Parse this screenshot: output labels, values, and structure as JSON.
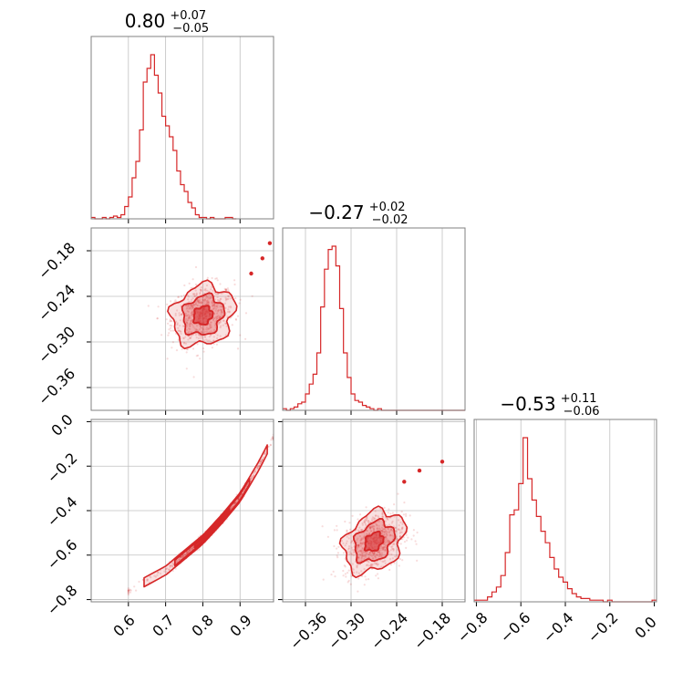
{
  "colors": {
    "accent": "#d62728",
    "grid": "#c0c0c0",
    "frame": "#808080"
  },
  "chart_data": {
    "type": "corner",
    "grid": true,
    "parameters": [
      {
        "id": "p1",
        "range": [
          0.5,
          0.99
        ],
        "ticks": [
          0.6,
          0.7,
          0.8,
          0.9
        ],
        "tick_labels": [
          "0.6",
          "0.7",
          "0.8",
          "0.9"
        ],
        "title": {
          "median": "0.80",
          "plus": "+0.07",
          "minus": "−0.05"
        }
      },
      {
        "id": "p2",
        "range": [
          -0.39,
          -0.15
        ],
        "ticks": [
          -0.36,
          -0.3,
          -0.24,
          -0.18
        ],
        "tick_labels": [
          "−0.36",
          "−0.30",
          "−0.24",
          "−0.18"
        ],
        "title": {
          "median": "−0.27",
          "plus": "+0.02",
          "minus": "−0.02"
        }
      },
      {
        "id": "p3",
        "range": [
          -0.81,
          0.01
        ],
        "ticks": [
          -0.8,
          -0.6,
          -0.4,
          -0.2,
          0.0
        ],
        "tick_labels": [
          "−0.8",
          "−0.6",
          "−0.4",
          "−0.2",
          "0.0"
        ],
        "title": {
          "median": "−0.53",
          "plus": "+0.11",
          "minus": "−0.06"
        }
      }
    ],
    "histograms": [
      {
        "param": "p1",
        "x_start": 0.5,
        "bin_width": 0.01,
        "counts": [
          1,
          0,
          0,
          1,
          0,
          1,
          2,
          1,
          3,
          9,
          16,
          30,
          42,
          65,
          100,
          110,
          120,
          105,
          92,
          75,
          68,
          60,
          50,
          35,
          25,
          20,
          12,
          8,
          3,
          1,
          1,
          0,
          1,
          0,
          0,
          0,
          1,
          1,
          0
        ]
      },
      {
        "param": "p2",
        "x_start": -0.39,
        "bin_width": 0.005,
        "counts": [
          1,
          0,
          1,
          2,
          4,
          5,
          10,
          16,
          22,
          35,
          63,
          86,
          98,
          100,
          88,
          62,
          35,
          20,
          10,
          6,
          5,
          3,
          2,
          1,
          0,
          1,
          0,
          0,
          0,
          0,
          0,
          0,
          0,
          0,
          0,
          0,
          0,
          0,
          0,
          0,
          0,
          0,
          0,
          0,
          0,
          0,
          0,
          0
        ]
      },
      {
        "param": "p3",
        "x_start": -0.81,
        "bin_width": 0.02,
        "counts": [
          1,
          1,
          1,
          3,
          6,
          9,
          16,
          30,
          53,
          56,
          72,
          100,
          75,
          62,
          52,
          43,
          36,
          27,
          20,
          15,
          12,
          8,
          5,
          3,
          2,
          2,
          1,
          1,
          1,
          0,
          1,
          0,
          0,
          0,
          0,
          0,
          0,
          0,
          0,
          0,
          1
        ]
      }
    ],
    "pairs": [
      {
        "x": "p1",
        "y": "p2",
        "center": [
          0.8,
          -0.265
        ],
        "spread": [
          0.042,
          0.02
        ],
        "correlation": 0.15,
        "outliers": [
          [
            0.98,
            -0.17
          ],
          [
            0.96,
            -0.19
          ],
          [
            0.93,
            -0.21
          ]
        ]
      },
      {
        "x": "p1",
        "y": "p3",
        "relation": "curve",
        "curve": [
          [
            0.6,
            -0.76
          ],
          [
            0.7,
            -0.67
          ],
          [
            0.75,
            -0.6
          ],
          [
            0.8,
            -0.53
          ],
          [
            0.85,
            -0.44
          ],
          [
            0.9,
            -0.34
          ],
          [
            0.95,
            -0.2
          ],
          [
            0.99,
            -0.07
          ]
        ],
        "spread": [
          0.045,
          0.01
        ]
      },
      {
        "x": "p2",
        "y": "p3",
        "center": [
          -0.27,
          -0.54
        ],
        "spread": [
          0.02,
          0.07
        ],
        "correlation": 0.3,
        "outliers": [
          [
            -0.21,
            -0.22
          ],
          [
            -0.18,
            -0.18
          ],
          [
            -0.23,
            -0.27
          ]
        ]
      }
    ],
    "contour_levels": [
      "inner",
      "middle",
      "outer"
    ]
  }
}
